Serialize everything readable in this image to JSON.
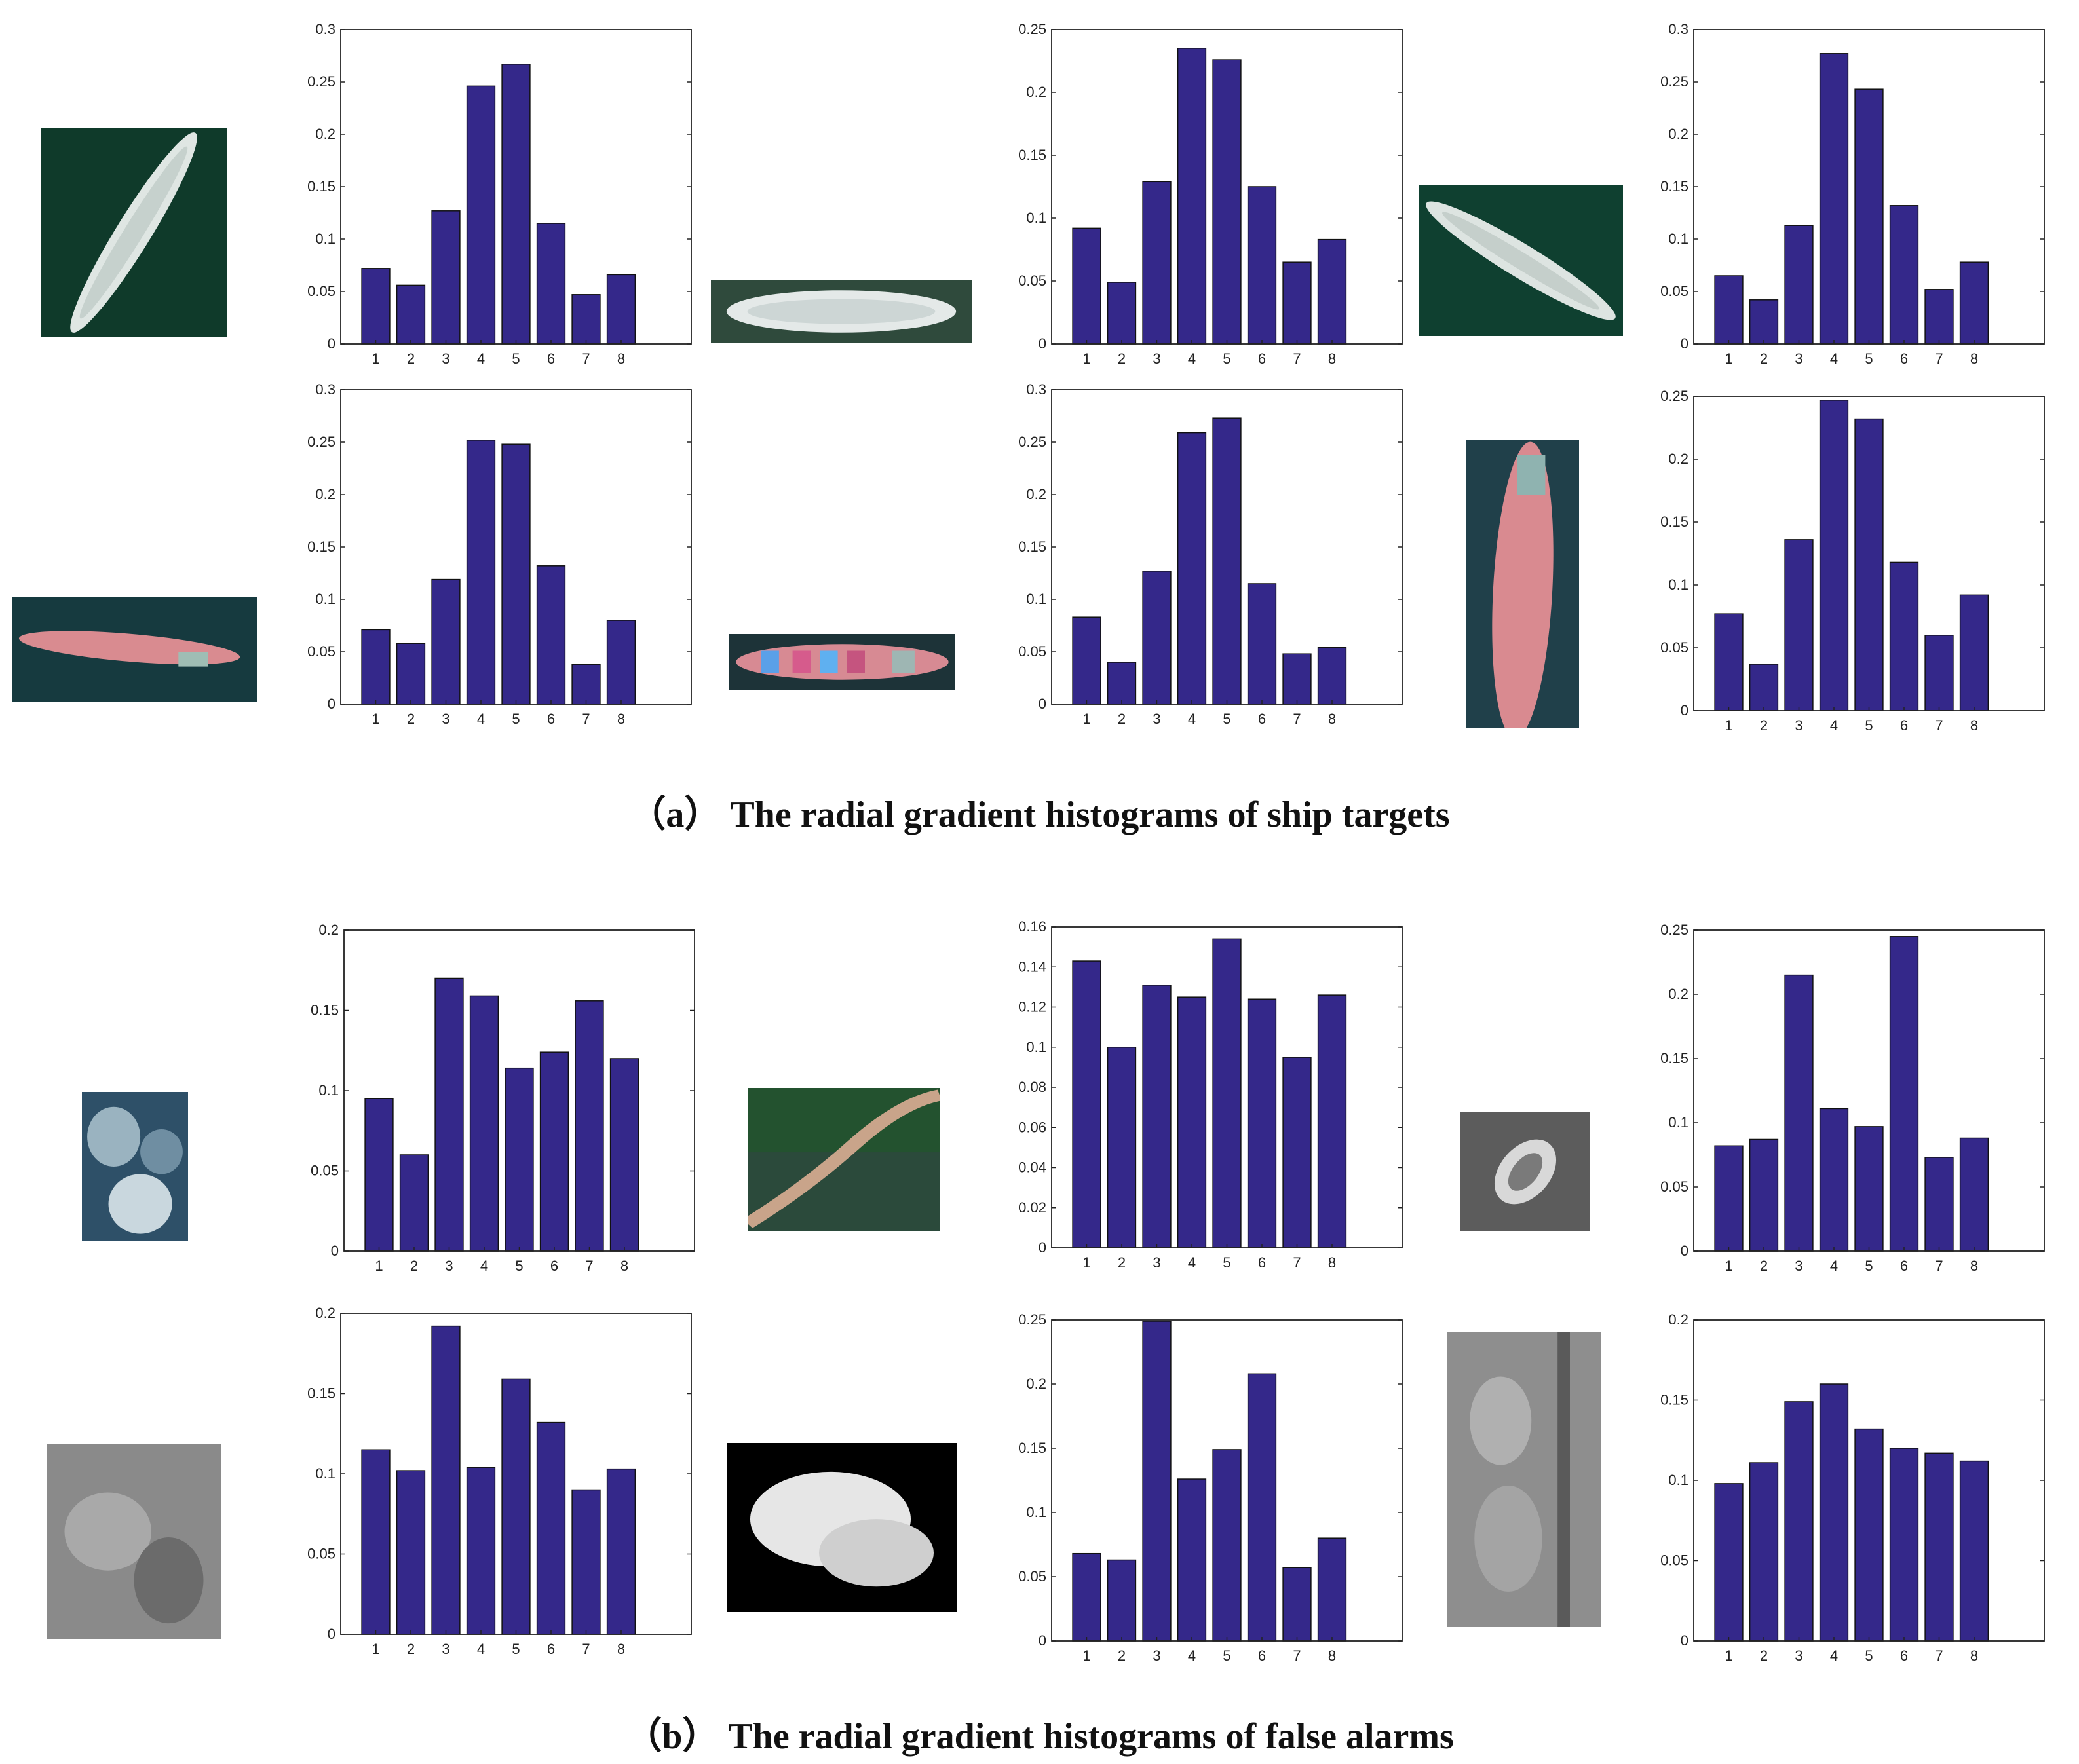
{
  "sections": [
    {
      "caption": "（a） The radial gradient histograms of ship targets",
      "charts": [
        {
          "type": "bar",
          "categories": [
            "1",
            "2",
            "3",
            "4",
            "5",
            "6",
            "7",
            "8"
          ],
          "values": [
            0.072,
            0.056,
            0.127,
            0.246,
            0.267,
            0.115,
            0.047,
            0.066
          ],
          "ylim": [
            0,
            0.3
          ],
          "yticks": [
            "0",
            "0.05",
            "0.1",
            "0.15",
            "0.2",
            "0.25",
            "0.3"
          ],
          "bar_color": "#34288a"
        },
        {
          "type": "bar",
          "categories": [
            "1",
            "2",
            "3",
            "4",
            "5",
            "6",
            "7",
            "8"
          ],
          "values": [
            0.092,
            0.049,
            0.129,
            0.235,
            0.226,
            0.125,
            0.065,
            0.083
          ],
          "ylim": [
            0,
            0.25
          ],
          "yticks": [
            "0",
            "0.05",
            "0.1",
            "0.15",
            "0.2",
            "0.25"
          ],
          "bar_color": "#34288a"
        },
        {
          "type": "bar",
          "categories": [
            "1",
            "2",
            "3",
            "4",
            "5",
            "6",
            "7",
            "8"
          ],
          "values": [
            0.065,
            0.042,
            0.113,
            0.277,
            0.243,
            0.132,
            0.052,
            0.078
          ],
          "ylim": [
            0,
            0.3
          ],
          "yticks": [
            "0",
            "0.05",
            "0.1",
            "0.15",
            "0.2",
            "0.25",
            "0.3"
          ],
          "bar_color": "#34288a"
        },
        {
          "type": "bar",
          "categories": [
            "1",
            "2",
            "3",
            "4",
            "5",
            "6",
            "7",
            "8"
          ],
          "values": [
            0.071,
            0.058,
            0.119,
            0.252,
            0.248,
            0.132,
            0.038,
            0.08
          ],
          "ylim": [
            0,
            0.3
          ],
          "yticks": [
            "0",
            "0.05",
            "0.1",
            "0.15",
            "0.2",
            "0.25",
            "0.3"
          ],
          "bar_color": "#34288a"
        },
        {
          "type": "bar",
          "categories": [
            "1",
            "2",
            "3",
            "4",
            "5",
            "6",
            "7",
            "8"
          ],
          "values": [
            0.083,
            0.04,
            0.127,
            0.259,
            0.273,
            0.115,
            0.048,
            0.054
          ],
          "ylim": [
            0,
            0.3
          ],
          "yticks": [
            "0",
            "0.05",
            "0.1",
            "0.15",
            "0.2",
            "0.25",
            "0.3"
          ],
          "bar_color": "#34288a"
        },
        {
          "type": "bar",
          "categories": [
            "1",
            "2",
            "3",
            "4",
            "5",
            "6",
            "7",
            "8"
          ],
          "values": [
            0.077,
            0.037,
            0.136,
            0.247,
            0.232,
            0.118,
            0.06,
            0.092
          ],
          "ylim": [
            0,
            0.25
          ],
          "yticks": [
            "0",
            "0.05",
            "0.1",
            "0.15",
            "0.2",
            "0.25"
          ],
          "bar_color": "#34288a"
        }
      ]
    },
    {
      "caption": "（b） The radial gradient histograms of false alarms",
      "charts": [
        {
          "type": "bar",
          "categories": [
            "1",
            "2",
            "3",
            "4",
            "5",
            "6",
            "7",
            "8"
          ],
          "values": [
            0.095,
            0.06,
            0.17,
            0.159,
            0.114,
            0.124,
            0.156,
            0.12
          ],
          "ylim": [
            0,
            0.2
          ],
          "yticks": [
            "0",
            "0.05",
            "0.1",
            "0.15",
            "0.2"
          ],
          "bar_color": "#34288a"
        },
        {
          "type": "bar",
          "categories": [
            "1",
            "2",
            "3",
            "4",
            "5",
            "6",
            "7",
            "8"
          ],
          "values": [
            0.143,
            0.1,
            0.131,
            0.125,
            0.154,
            0.124,
            0.095,
            0.126
          ],
          "ylim": [
            0,
            0.16
          ],
          "yticks": [
            "0",
            "0.02",
            "0.04",
            "0.06",
            "0.08",
            "0.1",
            "0.12",
            "0.14",
            "0.16"
          ],
          "bar_color": "#34288a"
        },
        {
          "type": "bar",
          "categories": [
            "1",
            "2",
            "3",
            "4",
            "5",
            "6",
            "7",
            "8"
          ],
          "values": [
            0.082,
            0.087,
            0.215,
            0.111,
            0.097,
            0.245,
            0.073,
            0.088
          ],
          "ylim": [
            0,
            0.25
          ],
          "yticks": [
            "0",
            "0.05",
            "0.1",
            "0.15",
            "0.2",
            "0.25"
          ],
          "bar_color": "#34288a"
        },
        {
          "type": "bar",
          "categories": [
            "1",
            "2",
            "3",
            "4",
            "5",
            "6",
            "7",
            "8"
          ],
          "values": [
            0.115,
            0.102,
            0.192,
            0.104,
            0.159,
            0.132,
            0.09,
            0.103
          ],
          "ylim": [
            0,
            0.2
          ],
          "yticks": [
            "0",
            "0.05",
            "0.1",
            "0.15",
            "0.2"
          ],
          "bar_color": "#34288a"
        },
        {
          "type": "bar",
          "categories": [
            "1",
            "2",
            "3",
            "4",
            "5",
            "6",
            "7",
            "8"
          ],
          "values": [
            0.068,
            0.063,
            0.249,
            0.126,
            0.149,
            0.208,
            0.057,
            0.08
          ],
          "ylim": [
            0,
            0.25
          ],
          "yticks": [
            "0",
            "0.05",
            "0.1",
            "0.15",
            "0.2",
            "0.25"
          ],
          "bar_color": "#34288a"
        },
        {
          "type": "bar",
          "categories": [
            "1",
            "2",
            "3",
            "4",
            "5",
            "6",
            "7",
            "8"
          ],
          "values": [
            0.098,
            0.111,
            0.149,
            0.16,
            0.132,
            0.12,
            0.117,
            0.112
          ],
          "ylim": [
            0,
            0.2
          ],
          "yticks": [
            "0",
            "0.05",
            "0.1",
            "0.15",
            "0.2"
          ],
          "bar_color": "#34288a"
        }
      ]
    }
  ],
  "chart_data": [
    {
      "type": "bar",
      "categories": [
        "1",
        "2",
        "3",
        "4",
        "5",
        "6",
        "7",
        "8"
      ],
      "values": [
        0.072,
        0.056,
        0.127,
        0.246,
        0.267,
        0.115,
        0.047,
        0.066
      ],
      "ylim": [
        0,
        0.3
      ]
    },
    {
      "type": "bar",
      "categories": [
        "1",
        "2",
        "3",
        "4",
        "5",
        "6",
        "7",
        "8"
      ],
      "values": [
        0.092,
        0.049,
        0.129,
        0.235,
        0.226,
        0.125,
        0.065,
        0.083
      ],
      "ylim": [
        0,
        0.25
      ]
    },
    {
      "type": "bar",
      "categories": [
        "1",
        "2",
        "3",
        "4",
        "5",
        "6",
        "7",
        "8"
      ],
      "values": [
        0.065,
        0.042,
        0.113,
        0.277,
        0.243,
        0.132,
        0.052,
        0.078
      ],
      "ylim": [
        0,
        0.3
      ]
    },
    {
      "type": "bar",
      "categories": [
        "1",
        "2",
        "3",
        "4",
        "5",
        "6",
        "7",
        "8"
      ],
      "values": [
        0.071,
        0.058,
        0.119,
        0.252,
        0.248,
        0.132,
        0.038,
        0.08
      ],
      "ylim": [
        0,
        0.3
      ]
    },
    {
      "type": "bar",
      "categories": [
        "1",
        "2",
        "3",
        "4",
        "5",
        "6",
        "7",
        "8"
      ],
      "values": [
        0.083,
        0.04,
        0.127,
        0.259,
        0.273,
        0.115,
        0.048,
        0.054
      ],
      "ylim": [
        0,
        0.3
      ]
    },
    {
      "type": "bar",
      "categories": [
        "1",
        "2",
        "3",
        "4",
        "5",
        "6",
        "7",
        "8"
      ],
      "values": [
        0.077,
        0.037,
        0.136,
        0.247,
        0.232,
        0.118,
        0.06,
        0.092
      ],
      "ylim": [
        0,
        0.25
      ]
    },
    {
      "type": "bar",
      "categories": [
        "1",
        "2",
        "3",
        "4",
        "5",
        "6",
        "7",
        "8"
      ],
      "values": [
        0.095,
        0.06,
        0.17,
        0.159,
        0.114,
        0.124,
        0.156,
        0.12
      ],
      "ylim": [
        0,
        0.2
      ]
    },
    {
      "type": "bar",
      "categories": [
        "1",
        "2",
        "3",
        "4",
        "5",
        "6",
        "7",
        "8"
      ],
      "values": [
        0.143,
        0.1,
        0.131,
        0.125,
        0.154,
        0.124,
        0.095,
        0.126
      ],
      "ylim": [
        0,
        0.16
      ]
    },
    {
      "type": "bar",
      "categories": [
        "1",
        "2",
        "3",
        "4",
        "5",
        "6",
        "7",
        "8"
      ],
      "values": [
        0.082,
        0.087,
        0.215,
        0.111,
        0.097,
        0.245,
        0.073,
        0.088
      ],
      "ylim": [
        0,
        0.25
      ]
    },
    {
      "type": "bar",
      "categories": [
        "1",
        "2",
        "3",
        "4",
        "5",
        "6",
        "7",
        "8"
      ],
      "values": [
        0.115,
        0.102,
        0.192,
        0.104,
        0.159,
        0.132,
        0.09,
        0.103
      ],
      "ylim": [
        0,
        0.2
      ]
    },
    {
      "type": "bar",
      "categories": [
        "1",
        "2",
        "3",
        "4",
        "5",
        "6",
        "7",
        "8"
      ],
      "values": [
        0.068,
        0.063,
        0.249,
        0.126,
        0.149,
        0.208,
        0.057,
        0.08
      ],
      "ylim": [
        0,
        0.25
      ]
    },
    {
      "type": "bar",
      "categories": [
        "1",
        "2",
        "3",
        "4",
        "5",
        "6",
        "7",
        "8"
      ],
      "values": [
        0.098,
        0.111,
        0.149,
        0.16,
        0.132,
        0.12,
        0.117,
        0.112
      ],
      "ylim": [
        0,
        0.2
      ]
    }
  ]
}
